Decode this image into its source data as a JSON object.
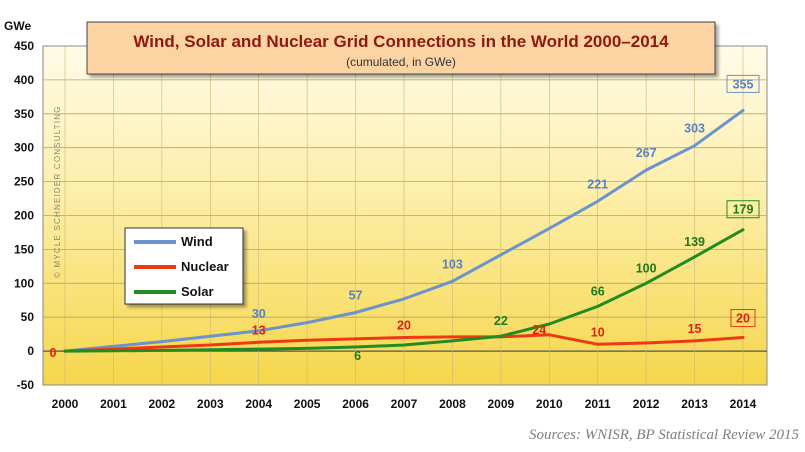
{
  "chart_data": {
    "type": "line",
    "title": "Wind, Solar and Nuclear Grid Connections in the World 2000–2014",
    "subtitle": "(cumulated, in GWe)",
    "ylabel": "GWe",
    "ylim": [
      -50,
      450
    ],
    "yticks": [
      -50,
      0,
      50,
      100,
      150,
      200,
      250,
      300,
      350,
      400,
      450
    ],
    "x": [
      "2000",
      "2001",
      "2002",
      "2003",
      "2004",
      "2005",
      "2006",
      "2007",
      "2008",
      "2009",
      "2010",
      "2011",
      "2012",
      "2013",
      "2014"
    ],
    "grid": true,
    "legend_position": "left",
    "series": [
      {
        "name": "Wind",
        "color": "#6b93cc",
        "values": [
          0,
          7,
          14,
          22,
          30,
          42,
          57,
          77,
          103,
          142,
          181,
          221,
          267,
          303,
          355
        ],
        "labels": [
          {
            "index": 4,
            "text": "30"
          },
          {
            "index": 6,
            "text": "57"
          },
          {
            "index": 8,
            "text": "103"
          },
          {
            "index": 11,
            "text": "221"
          },
          {
            "index": 12,
            "text": "267"
          },
          {
            "index": 13,
            "text": "303"
          },
          {
            "index": 14,
            "text": "355",
            "boxed": true
          }
        ]
      },
      {
        "name": "Nuclear",
        "color": "#ee3a14",
        "values": [
          0,
          3,
          6,
          9,
          13,
          16,
          18,
          20,
          21,
          21,
          24,
          10,
          12,
          15,
          20
        ],
        "labels": [
          {
            "index": 0,
            "text": "0"
          },
          {
            "index": 4,
            "text": "13"
          },
          {
            "index": 7,
            "text": "20"
          },
          {
            "index": 10,
            "text": "24"
          },
          {
            "index": 11,
            "text": "10"
          },
          {
            "index": 13,
            "text": "15"
          },
          {
            "index": 14,
            "text": "20",
            "boxed": true
          }
        ]
      },
      {
        "name": "Solar",
        "color": "#228b22",
        "values": [
          0,
          0.5,
          1,
          2,
          3,
          4,
          6,
          9,
          15,
          22,
          40,
          66,
          100,
          139,
          179
        ],
        "labels": [
          {
            "index": 6,
            "text": "6"
          },
          {
            "index": 9,
            "text": "22"
          },
          {
            "index": 11,
            "text": "66"
          },
          {
            "index": 12,
            "text": "100"
          },
          {
            "index": 13,
            "text": "139"
          },
          {
            "index": 14,
            "text": "179",
            "boxed": true
          }
        ]
      }
    ]
  },
  "watermark": "© MYCLE SCHNEIDER CONSULTING",
  "source": "Sources: WNISR, BP Statistical Review 2015"
}
